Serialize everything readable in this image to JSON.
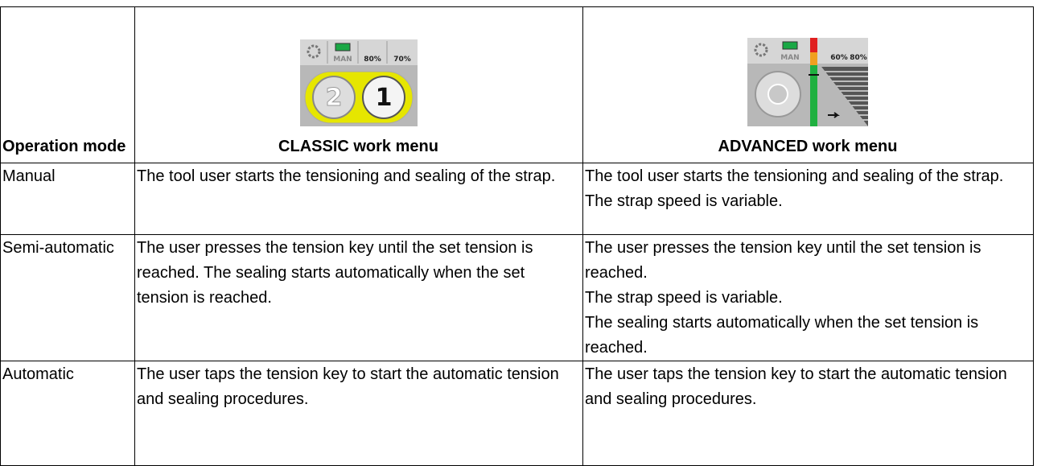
{
  "table": {
    "header": [
      "Operation mode",
      "CLASSIC work menu",
      "ADVANCED work menu"
    ],
    "icons": {
      "classic": {
        "mode": "MAN",
        "levels": [
          "80%",
          "70%"
        ],
        "buttons": [
          "2",
          "1"
        ]
      },
      "advanced": {
        "mode": "MAN",
        "levels": [
          "60%",
          "80%"
        ]
      }
    },
    "rows": [
      [
        "Manual",
        [
          "The tool user starts the tensioning and sealing of the strap."
        ],
        [
          "The tool user starts the tensioning and sealing of the strap.",
          "The strap speed is variable."
        ]
      ],
      [
        "Semi-automatic",
        [
          "The user presses the tension key until the set tension is reached. The sealing starts automatically when the set tension is reached."
        ],
        [
          "The user presses the tension key until the set tension is reached.",
          "The strap speed is variable.",
          "The sealing starts automatically when the set tension is reached."
        ]
      ],
      [
        "Automatic",
        [
          "The user taps the tension key to start the automatic tension and sealing procedures."
        ],
        [
          "The user taps the tension key to start the automatic tension and sealing procedures."
        ]
      ]
    ]
  }
}
